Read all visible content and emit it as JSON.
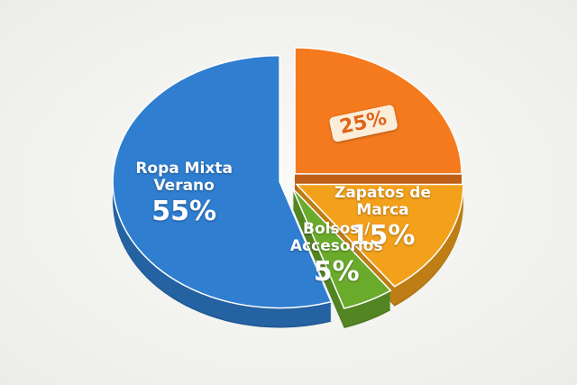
{
  "chart_data": {
    "type": "pie",
    "categories": [
      null,
      "Zapatos de Marca",
      "Bolsos / Accesorios",
      "Ropa Mixta Verano"
    ],
    "values": [
      25,
      15,
      5,
      55
    ],
    "value_labels": [
      "25%",
      "15%",
      "5%",
      "55%"
    ],
    "colors": [
      "#f57a1e",
      "#f3a11b",
      "#6aab2c",
      "#2f7ed0"
    ]
  }
}
